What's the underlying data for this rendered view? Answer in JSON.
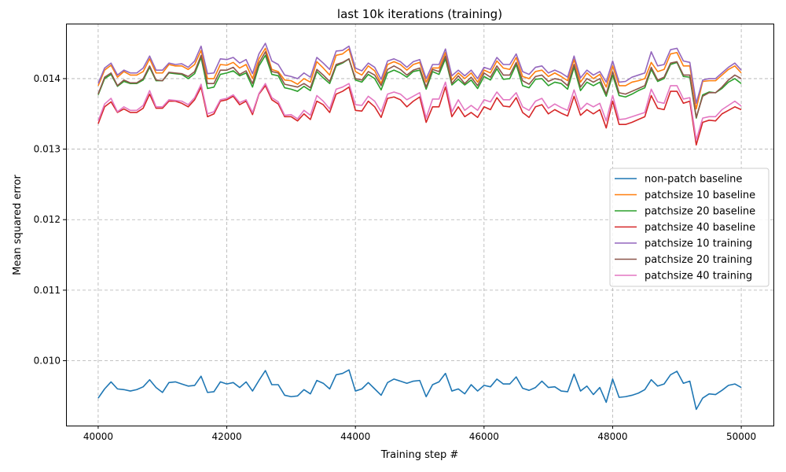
{
  "chart_data": {
    "type": "line",
    "title": "last 10k iterations (training)",
    "xlabel": "Training step #",
    "ylabel": "Mean squared error",
    "xlim": [
      39500,
      50500
    ],
    "ylim": [
      0.00908,
      0.01478
    ],
    "xticks": [
      40000,
      42000,
      44000,
      46000,
      48000,
      50000
    ],
    "xtick_labels": [
      "40000",
      "42000",
      "44000",
      "46000",
      "48000",
      "50000"
    ],
    "yticks": [
      0.01,
      0.011,
      0.012,
      0.013,
      0.014
    ],
    "ytick_labels": [
      "0.010",
      "0.011",
      "0.012",
      "0.013",
      "0.014"
    ],
    "grid": true,
    "legend_position": "center-right",
    "x_start": 40000,
    "x_step": 100,
    "series": [
      {
        "name": "non-patch baseline",
        "color": "#1f77b4",
        "values": [
          0.00947,
          0.0096,
          0.0097,
          0.0096,
          0.00959,
          0.00957,
          0.00959,
          0.00963,
          0.00973,
          0.00962,
          0.00955,
          0.00969,
          0.0097,
          0.00967,
          0.00964,
          0.00965,
          0.00978,
          0.00955,
          0.00956,
          0.0097,
          0.00967,
          0.00969,
          0.00962,
          0.0097,
          0.00957,
          0.00972,
          0.00986,
          0.00966,
          0.00966,
          0.00951,
          0.00949,
          0.0095,
          0.00959,
          0.00953,
          0.00972,
          0.00968,
          0.0096,
          0.0098,
          0.00982,
          0.00987,
          0.00957,
          0.0096,
          0.00969,
          0.0096,
          0.00951,
          0.00969,
          0.00974,
          0.00971,
          0.00968,
          0.00971,
          0.00972,
          0.00949,
          0.00966,
          0.0097,
          0.00982,
          0.00957,
          0.0096,
          0.00953,
          0.00966,
          0.00957,
          0.00965,
          0.00963,
          0.00974,
          0.00967,
          0.00967,
          0.00977,
          0.00961,
          0.00958,
          0.00962,
          0.00971,
          0.00962,
          0.00963,
          0.00957,
          0.00956,
          0.00981,
          0.00957,
          0.00964,
          0.00952,
          0.00962,
          0.00941,
          0.00974,
          0.00948,
          0.00949,
          0.00951,
          0.00954,
          0.00959,
          0.00973,
          0.00964,
          0.00967,
          0.0098,
          0.00985,
          0.00968,
          0.00971,
          0.00931,
          0.00947,
          0.00953,
          0.00952,
          0.00958,
          0.00965,
          0.00967,
          0.00962
        ]
      },
      {
        "name": "patchsize 10 baseline",
        "color": "#ff7f0e",
        "values": [
          0.0139,
          0.01412,
          0.01419,
          0.01402,
          0.0141,
          0.01405,
          0.01405,
          0.0141,
          0.01428,
          0.01408,
          0.01408,
          0.0142,
          0.01418,
          0.01418,
          0.01413,
          0.0142,
          0.0144,
          0.014,
          0.014,
          0.0142,
          0.01419,
          0.01423,
          0.01415,
          0.0142,
          0.014,
          0.01428,
          0.01443,
          0.01413,
          0.0141,
          0.01398,
          0.01397,
          0.01392,
          0.014,
          0.01395,
          0.01424,
          0.01415,
          0.01405,
          0.01433,
          0.01435,
          0.01442,
          0.0141,
          0.01405,
          0.01418,
          0.01411,
          0.01393,
          0.0142,
          0.01424,
          0.0142,
          0.01412,
          0.0142,
          0.01423,
          0.01395,
          0.01415,
          0.01415,
          0.01437,
          0.01398,
          0.01408,
          0.014,
          0.01408,
          0.01395,
          0.01412,
          0.01408,
          0.01425,
          0.01415,
          0.01413,
          0.0143,
          0.01403,
          0.014,
          0.0141,
          0.01412,
          0.01403,
          0.01408,
          0.01403,
          0.01397,
          0.01427,
          0.01395,
          0.01408,
          0.014,
          0.01406,
          0.01388,
          0.01418,
          0.0139,
          0.0139,
          0.01395,
          0.01397,
          0.014,
          0.01423,
          0.0141,
          0.01413,
          0.01435,
          0.01437,
          0.01418,
          0.01418,
          0.01357,
          0.01396,
          0.01397,
          0.01397,
          0.01405,
          0.01413,
          0.01418,
          0.01408
        ]
      },
      {
        "name": "patchsize 20 baseline",
        "color": "#2ca02c",
        "values": [
          0.01377,
          0.014,
          0.01406,
          0.01389,
          0.01396,
          0.01393,
          0.01393,
          0.01398,
          0.01416,
          0.01397,
          0.01397,
          0.01408,
          0.01407,
          0.01406,
          0.014,
          0.01407,
          0.0143,
          0.01386,
          0.01388,
          0.01406,
          0.01408,
          0.01411,
          0.01404,
          0.01408,
          0.01388,
          0.01418,
          0.01433,
          0.01406,
          0.01404,
          0.01387,
          0.01385,
          0.01382,
          0.01389,
          0.01383,
          0.0141,
          0.01401,
          0.01393,
          0.01418,
          0.01422,
          0.01428,
          0.01398,
          0.01395,
          0.01406,
          0.014,
          0.01384,
          0.01408,
          0.01412,
          0.01408,
          0.01402,
          0.0141,
          0.01412,
          0.01385,
          0.0141,
          0.01406,
          0.01428,
          0.01391,
          0.01399,
          0.01391,
          0.01398,
          0.01386,
          0.01403,
          0.01398,
          0.01414,
          0.01399,
          0.014,
          0.0142,
          0.0139,
          0.01387,
          0.01399,
          0.014,
          0.0139,
          0.01395,
          0.01393,
          0.01385,
          0.01416,
          0.01383,
          0.01395,
          0.0139,
          0.01395,
          0.01375,
          0.01405,
          0.01376,
          0.01374,
          0.01378,
          0.01383,
          0.01387,
          0.01413,
          0.01396,
          0.014,
          0.0142,
          0.01423,
          0.01403,
          0.01402,
          0.01344,
          0.01377,
          0.01381,
          0.0138,
          0.01386,
          0.01395,
          0.014,
          0.01393
        ]
      },
      {
        "name": "patchsize 40 baseline",
        "color": "#d62728",
        "values": [
          0.01336,
          0.0136,
          0.01367,
          0.01352,
          0.01357,
          0.01352,
          0.01352,
          0.01358,
          0.01378,
          0.01358,
          0.01358,
          0.01368,
          0.01368,
          0.01365,
          0.0136,
          0.0137,
          0.01388,
          0.01346,
          0.0135,
          0.01368,
          0.0137,
          0.01375,
          0.01363,
          0.01368,
          0.01349,
          0.01378,
          0.0139,
          0.0137,
          0.01364,
          0.01346,
          0.01346,
          0.0134,
          0.0135,
          0.01342,
          0.01368,
          0.01363,
          0.01352,
          0.01378,
          0.01382,
          0.01388,
          0.01355,
          0.01354,
          0.01368,
          0.0136,
          0.01345,
          0.01372,
          0.01374,
          0.0137,
          0.0136,
          0.01368,
          0.01374,
          0.01338,
          0.0136,
          0.0136,
          0.01388,
          0.01346,
          0.0136,
          0.01346,
          0.01352,
          0.01345,
          0.0136,
          0.01356,
          0.01373,
          0.01361,
          0.0136,
          0.01373,
          0.01352,
          0.01345,
          0.0136,
          0.01363,
          0.0135,
          0.01356,
          0.01351,
          0.01347,
          0.01375,
          0.01348,
          0.01356,
          0.0135,
          0.01356,
          0.0133,
          0.01368,
          0.01335,
          0.01335,
          0.01338,
          0.01342,
          0.01346,
          0.01376,
          0.01358,
          0.01356,
          0.01382,
          0.01382,
          0.01365,
          0.01368,
          0.01306,
          0.01338,
          0.01341,
          0.0134,
          0.0135,
          0.01355,
          0.0136,
          0.01356
        ]
      },
      {
        "name": "patchsize 10 training",
        "color": "#9467bd",
        "values": [
          0.01393,
          0.01415,
          0.01422,
          0.01405,
          0.01412,
          0.01408,
          0.01408,
          0.01415,
          0.01432,
          0.01412,
          0.01412,
          0.01422,
          0.0142,
          0.01421,
          0.01416,
          0.01425,
          0.01446,
          0.01407,
          0.01408,
          0.01428,
          0.01427,
          0.0143,
          0.01422,
          0.01427,
          0.01407,
          0.01435,
          0.0145,
          0.01425,
          0.0142,
          0.01405,
          0.01403,
          0.014,
          0.01408,
          0.01402,
          0.0143,
          0.01422,
          0.01413,
          0.01439,
          0.0144,
          0.01446,
          0.01415,
          0.01411,
          0.01422,
          0.01416,
          0.01399,
          0.01425,
          0.01428,
          0.01424,
          0.01416,
          0.01424,
          0.01427,
          0.014,
          0.0142,
          0.0142,
          0.01442,
          0.01404,
          0.01412,
          0.01404,
          0.01412,
          0.014,
          0.01416,
          0.01413,
          0.0143,
          0.0142,
          0.0142,
          0.01435,
          0.0141,
          0.01406,
          0.01416,
          0.01418,
          0.01408,
          0.01412,
          0.01408,
          0.01402,
          0.01432,
          0.01401,
          0.01412,
          0.01405,
          0.0141,
          0.01395,
          0.01425,
          0.01395,
          0.01396,
          0.01402,
          0.01405,
          0.01408,
          0.01438,
          0.01418,
          0.0142,
          0.01441,
          0.01443,
          0.01425,
          0.01423,
          0.01365,
          0.01398,
          0.014,
          0.014,
          0.01408,
          0.01416,
          0.01422,
          0.01412
        ]
      },
      {
        "name": "patchsize 20 training",
        "color": "#8c564b",
        "values": [
          0.01378,
          0.01402,
          0.01408,
          0.0139,
          0.01398,
          0.01394,
          0.01394,
          0.014,
          0.01418,
          0.01398,
          0.01397,
          0.01409,
          0.01408,
          0.01407,
          0.01403,
          0.0141,
          0.01433,
          0.01393,
          0.01393,
          0.01412,
          0.01412,
          0.01416,
          0.01406,
          0.01411,
          0.01393,
          0.01422,
          0.01438,
          0.0141,
          0.01408,
          0.01392,
          0.0139,
          0.01388,
          0.01393,
          0.01387,
          0.01413,
          0.01405,
          0.01396,
          0.0142,
          0.01423,
          0.01428,
          0.014,
          0.01398,
          0.0141,
          0.01405,
          0.0139,
          0.01413,
          0.01418,
          0.01413,
          0.01405,
          0.01412,
          0.01415,
          0.01388,
          0.01413,
          0.0141,
          0.01432,
          0.01393,
          0.01404,
          0.01393,
          0.01402,
          0.0139,
          0.01408,
          0.01402,
          0.01418,
          0.01405,
          0.01405,
          0.01423,
          0.01397,
          0.01392,
          0.01403,
          0.01405,
          0.01396,
          0.014,
          0.01398,
          0.0139,
          0.0142,
          0.01388,
          0.014,
          0.01395,
          0.014,
          0.01378,
          0.0141,
          0.0138,
          0.01378,
          0.01382,
          0.01386,
          0.0139,
          0.01416,
          0.01398,
          0.01402,
          0.01422,
          0.01424,
          0.01405,
          0.01405,
          0.01345,
          0.01375,
          0.0138,
          0.0138,
          0.01388,
          0.01398,
          0.01405,
          0.014
        ]
      },
      {
        "name": "patchsize 40 training",
        "color": "#e377c2",
        "values": [
          0.0134,
          0.01364,
          0.01372,
          0.01353,
          0.0136,
          0.01355,
          0.01355,
          0.01362,
          0.01383,
          0.0136,
          0.0136,
          0.0137,
          0.01369,
          0.01368,
          0.01363,
          0.01373,
          0.01392,
          0.0135,
          0.01353,
          0.0137,
          0.01372,
          0.01377,
          0.01366,
          0.0137,
          0.01352,
          0.01379,
          0.01393,
          0.01373,
          0.01367,
          0.01348,
          0.01349,
          0.01343,
          0.01355,
          0.01348,
          0.01376,
          0.01368,
          0.01357,
          0.01385,
          0.01388,
          0.01393,
          0.01363,
          0.01362,
          0.01375,
          0.01368,
          0.01353,
          0.01378,
          0.01381,
          0.01378,
          0.0137,
          0.01375,
          0.0138,
          0.01344,
          0.01371,
          0.01371,
          0.01395,
          0.01353,
          0.0137,
          0.01355,
          0.01362,
          0.01355,
          0.0137,
          0.01367,
          0.01381,
          0.0137,
          0.0137,
          0.0138,
          0.0136,
          0.01355,
          0.01368,
          0.01372,
          0.01358,
          0.01364,
          0.01359,
          0.01355,
          0.01384,
          0.01356,
          0.01365,
          0.0136,
          0.01365,
          0.0134,
          0.01376,
          0.01342,
          0.01343,
          0.01346,
          0.01349,
          0.01352,
          0.01385,
          0.01367,
          0.01365,
          0.0139,
          0.0139,
          0.01371,
          0.01373,
          0.01313,
          0.01344,
          0.01346,
          0.01346,
          0.01356,
          0.01362,
          0.01368,
          0.01361
        ]
      }
    ]
  }
}
